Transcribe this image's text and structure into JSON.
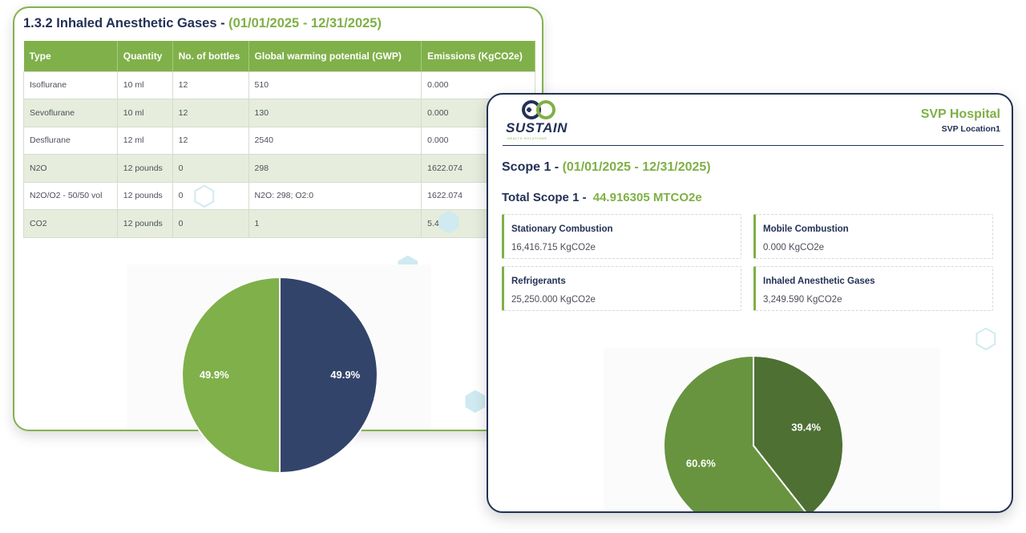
{
  "left_card": {
    "title_prefix": "1.3.2 Inhaled Anesthetic Gases - ",
    "title_range": "(01/01/2025 - 12/31/2025)",
    "table": {
      "headers": [
        "Type",
        "Quantity",
        "No. of bottles",
        "Global warming potential (GWP)",
        "Emissions (KgCO2e)"
      ],
      "rows": [
        [
          "Isoflurane",
          "10 ml",
          "12",
          "510",
          "0.000"
        ],
        [
          "Sevoflurane",
          "10 ml",
          "12",
          "130",
          "0.000"
        ],
        [
          "Desflurane",
          "12 ml",
          "12",
          "2540",
          "0.000"
        ],
        [
          "N2O",
          "12 pounds",
          "0",
          "298",
          "1622.074"
        ],
        [
          "N2O/O2 - 50/50 vol",
          "12 pounds",
          "0",
          "N2O: 298; O2:0",
          "1622.074"
        ],
        [
          "CO2",
          "12 pounds",
          "0",
          "1",
          "5.443"
        ]
      ]
    }
  },
  "right_card": {
    "logo": {
      "word": "SUSTAIN",
      "tagline": "HEALTH SOLUTIONS"
    },
    "hospital_name": "SVP Hospital",
    "hospital_location": "SVP Location1",
    "scope_title": "Scope 1 - ",
    "scope_range": "(01/01/2025 - 12/31/2025)",
    "total_label": "Total Scope 1 - ",
    "total_value": "44.916305 MTCO2e",
    "stats": [
      {
        "label": "Stationary Combustion",
        "value": "16,416.715 KgCO2e"
      },
      {
        "label": "Mobile Combustion",
        "value": "0.000 KgCO2e"
      },
      {
        "label": "Refrigerants",
        "value": "25,250.000 KgCO2e"
      },
      {
        "label": "Inhaled Anesthetic Gases",
        "value": "3,249.590 KgCO2e"
      }
    ]
  },
  "colors": {
    "brand_green": "#7fb046",
    "brand_navy": "#233155",
    "pie_navy": "#33446b",
    "pie_dark_green": "#4e7033",
    "pie_mid_green": "#68943f"
  },
  "chart_data": [
    {
      "type": "pie",
      "slices": [
        {
          "value": 49.9,
          "label": "49.9%",
          "color": "#80b04a"
        },
        {
          "value": 49.9,
          "label": "49.9%",
          "color": "#33446b"
        }
      ]
    },
    {
      "type": "pie",
      "slices": [
        {
          "value": 39.4,
          "label": "39.4%",
          "color": "#4e7033"
        },
        {
          "value": 60.6,
          "label": "60.6%",
          "color": "#68943f"
        }
      ]
    }
  ]
}
